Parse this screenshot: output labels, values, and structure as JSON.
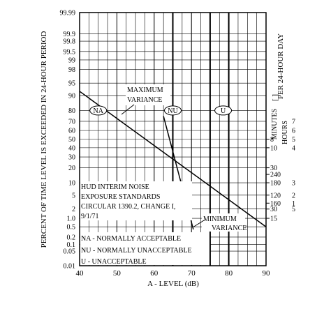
{
  "chart_data": {
    "type": "line",
    "title": "",
    "xlabel": "A - LEVEL (dB)",
    "ylabel": "PERCENT OF TIME LEVEL IS EXCEEDED IN 24-HOUR PERIOD",
    "x_ticks": [
      "40",
      "50",
      "60",
      "70",
      "80",
      "90"
    ],
    "xlim": [
      40,
      90
    ],
    "y_scale": "probability",
    "y_ticks": [
      "99.99",
      "99.9",
      "99.8",
      "99.5",
      "99",
      "98",
      "95",
      "90",
      "80",
      "70",
      "60",
      "50",
      "40",
      "30",
      "20",
      "10",
      "5",
      "2",
      "1.0",
      "0.5",
      "0.2",
      "0.1",
      "0.05",
      "0.01"
    ],
    "ylim": [
      0.01,
      99.99
    ],
    "grid": true,
    "series": [
      {
        "name": "",
        "label": "MAXIMUM VARIANCE",
        "x": [
          40,
          90
        ],
        "y": [
          92,
          0.5
        ]
      },
      {
        "name": "",
        "label": "MINIMUM VARIANCE",
        "x": [
          62.5,
          70.5
        ],
        "y": [
          75,
          0.4
        ]
      }
    ],
    "zone_boundaries": [
      {
        "label": "NA",
        "x": 65
      },
      {
        "label": "NU",
        "x": 75
      },
      {
        "label": "U",
        "x": 80
      }
    ],
    "zone_labels": [
      {
        "label": "NA",
        "x": 45,
        "y": 80
      },
      {
        "label": "NU",
        "x": 65,
        "y": 80
      },
      {
        "label": "U",
        "x": 78.5,
        "y": 80
      }
    ],
    "annotations": {
      "max_variance": [
        "MAXIMUM",
        "VARIANCE"
      ],
      "min_variance": [
        "MINIMUM",
        "VARIANCE"
      ],
      "standards": [
        "HUD INTERIM NOISE",
        "EXPOSURE STANDARDS",
        "CIRCULAR 1390.2, CHANGE I,",
        "9/1/71"
      ],
      "legend": [
        "NA - NORMALLY ACCEPTABLE",
        "NU - NORMALLY UNACCEPTABLE",
        "U - UNACCEPTABLE"
      ]
    },
    "right_axis": {
      "label_minutes": "MINUTES",
      "label_hours": "HOURS",
      "label_per_day": "PER 24-HOUR DAY",
      "minutes_ticks": [
        {
          "text": "8",
          "y": 50
        },
        {
          "text": "10",
          "y": 40
        },
        {
          "text": "30",
          "y": 20
        },
        {
          "text": "240",
          "y": 15
        },
        {
          "text": "180",
          "y": 10
        },
        {
          "text": "120",
          "y": 5
        },
        {
          "text": "160",
          "y": 3
        },
        {
          "text": "30",
          "y": 2
        },
        {
          "text": "15",
          "y": 1
        }
      ],
      "hours_ticks": [
        {
          "text": "7",
          "y": 70
        },
        {
          "text": "6",
          "y": 60
        },
        {
          "text": "5",
          "y": 50
        },
        {
          "text": "4",
          "y": 40
        },
        {
          "text": "3",
          "y": 10
        },
        {
          "text": "2",
          "y": 5
        },
        {
          "text": "1",
          "y": 3
        },
        {
          "text": "5",
          "y": 2
        }
      ]
    }
  }
}
